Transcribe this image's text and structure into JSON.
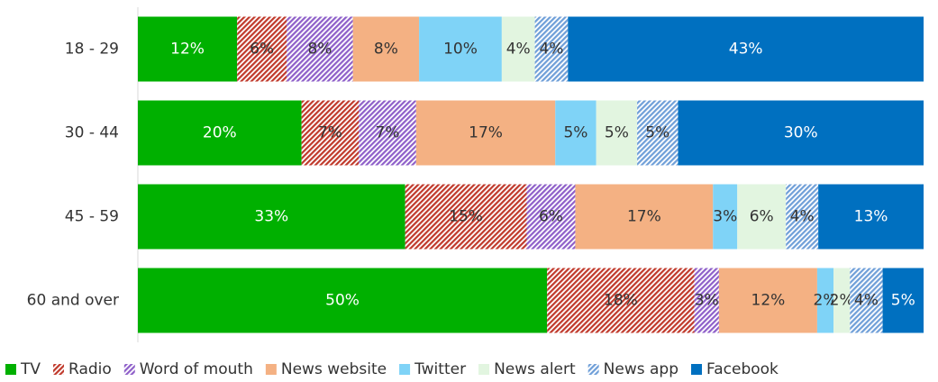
{
  "chart_data": {
    "type": "stacked_bar_horizontal",
    "categories": [
      "18 - 29",
      "30 - 44",
      "45 - 59",
      "60 and over"
    ],
    "series": [
      {
        "name": "TV",
        "color": "#00b000",
        "hatch": false,
        "label_color": "#ffffff",
        "values": [
          12,
          20,
          33,
          50
        ],
        "value_labels": [
          "12%",
          "20%",
          "33%",
          "50%"
        ]
      },
      {
        "name": "Radio",
        "color": "#c0392b",
        "hatch": true,
        "label_color": "#333333",
        "values": [
          6,
          7,
          15,
          18
        ],
        "value_labels": [
          "6%",
          "7%",
          "15%",
          "18%"
        ]
      },
      {
        "name": "Word of mouth",
        "color": "#8e5fc9",
        "hatch": true,
        "label_color": "#333333",
        "values": [
          8,
          7,
          6,
          3
        ],
        "value_labels": [
          "8%",
          "7%",
          "6%",
          "3%"
        ]
      },
      {
        "name": "News website",
        "color": "#f4b183",
        "hatch": false,
        "label_color": "#333333",
        "values": [
          8,
          17,
          17,
          12
        ],
        "value_labels": [
          "8%",
          "17%",
          "17%",
          "12%"
        ]
      },
      {
        "name": "Twitter",
        "color": "#7fd3f7",
        "hatch": false,
        "label_color": "#333333",
        "values": [
          10,
          5,
          3,
          2
        ],
        "value_labels": [
          "10%",
          "5%",
          "3%",
          "2%"
        ]
      },
      {
        "name": "News alert",
        "color": "#e2f5e0",
        "hatch": false,
        "label_color": "#333333",
        "values": [
          4,
          5,
          6,
          2
        ],
        "value_labels": [
          "4%",
          "5%",
          "6%",
          "2%"
        ]
      },
      {
        "name": "News app",
        "color": "#6f9fd8",
        "hatch": true,
        "label_color": "#333333",
        "values": [
          4,
          5,
          4,
          4
        ],
        "value_labels": [
          "4%",
          "5%",
          "4%",
          "4%"
        ]
      },
      {
        "name": "Facebook",
        "color": "#0070c0",
        "hatch": false,
        "label_color": "#ffffff",
        "values": [
          43,
          30,
          13,
          5
        ],
        "value_labels": [
          "43%",
          "30%",
          "13%",
          "5%"
        ]
      }
    ],
    "legend": "bottom"
  }
}
